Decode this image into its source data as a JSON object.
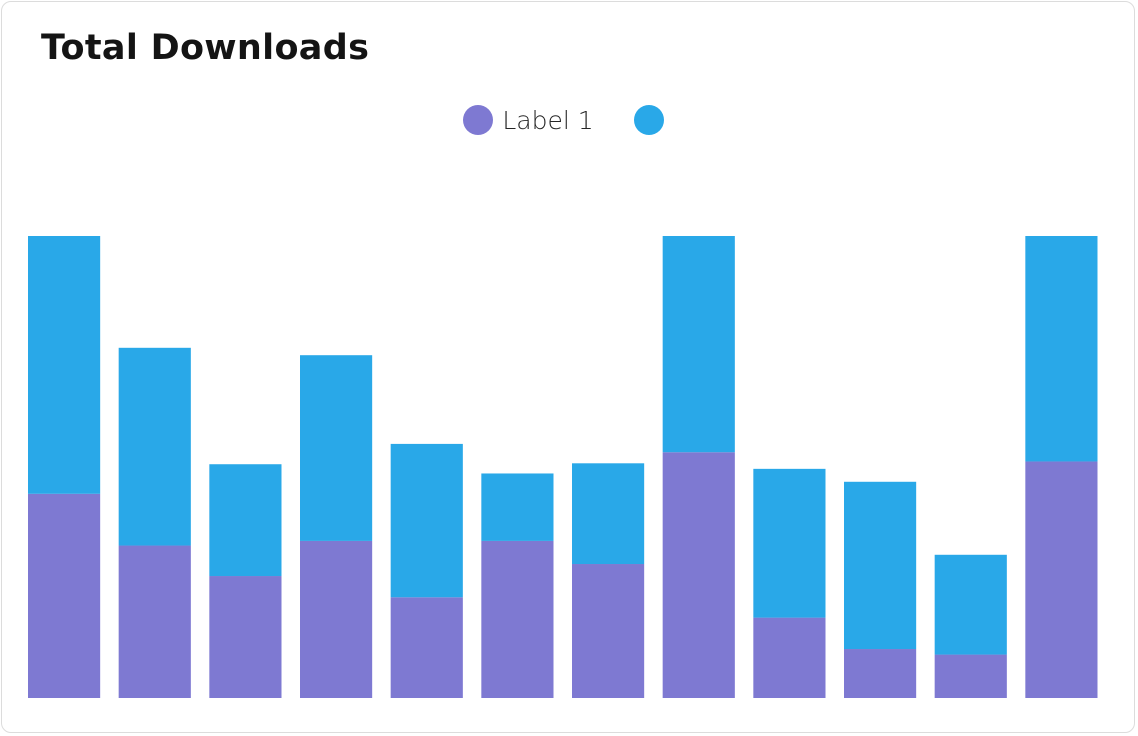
{
  "card": {
    "title": "Total Downloads"
  },
  "colors": {
    "series1": "#7e79d2",
    "series2": "#29a8e8"
  },
  "chart_data": {
    "type": "bar",
    "stacked": true,
    "title": "Total Downloads",
    "xlabel": "",
    "ylabel": "",
    "grid": false,
    "legend_position": "top-center",
    "categories": [
      "",
      "",
      "",
      "",
      "",
      "",
      "",
      "",
      "",
      "",
      "",
      ""
    ],
    "ylim": [
      0,
      100
    ],
    "series": [
      {
        "name": "Label 1",
        "color": "#7e79d2",
        "values": [
          44.2,
          33,
          26.4,
          34,
          21.8,
          34,
          29,
          53.2,
          17.4,
          10.6,
          9.4,
          51.2
        ]
      },
      {
        "name": "",
        "color": "#29a8e8",
        "values": [
          55.8,
          42.8,
          24.2,
          40.2,
          33.2,
          14.6,
          21.8,
          46.8,
          32.2,
          36.2,
          21.6,
          48.8
        ]
      }
    ]
  }
}
